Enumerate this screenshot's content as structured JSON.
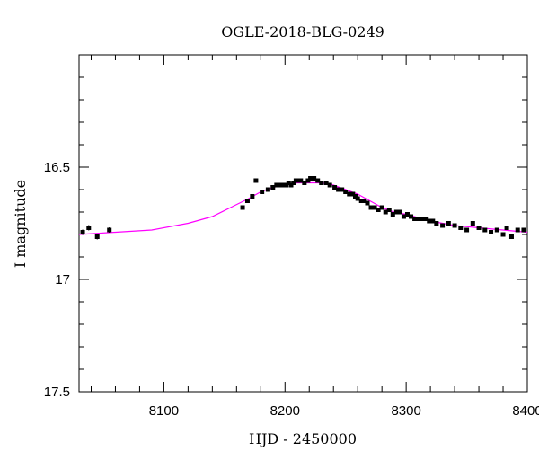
{
  "chart_data": {
    "type": "scatter",
    "title": "OGLE-2018-BLG-0249",
    "xlabel": "HJD - 2450000",
    "ylabel": "I magnitude",
    "xlim": [
      8030,
      8400
    ],
    "ylim": [
      17.5,
      16.0
    ],
    "y_inverted": true,
    "x_ticks": [
      8100,
      8200,
      8300,
      8400
    ],
    "x_tick_labels": [
      "8100",
      "8200",
      "8300",
      "8400"
    ],
    "y_ticks": [
      16.5,
      17.0,
      17.5
    ],
    "y_tick_labels": [
      "16.5",
      "17",
      "17.5"
    ],
    "grid": false,
    "series": [
      {
        "kind": "points",
        "color": "#000000",
        "x": [
          8033,
          8038,
          8045,
          8055,
          8165,
          8169,
          8173,
          8176,
          8181,
          8186,
          8190,
          8193,
          8196,
          8199,
          8201,
          8203,
          8205,
          8207,
          8209,
          8211,
          8213,
          8216,
          8219,
          8221,
          8224,
          8227,
          8230,
          8234,
          8237,
          8241,
          8244,
          8247,
          8250,
          8253,
          8256,
          8258,
          8260,
          8263,
          8265,
          8268,
          8271,
          8274,
          8277,
          8280,
          8283,
          8286,
          8289,
          8292,
          8295,
          8298,
          8301,
          8304,
          8307,
          8310,
          8313,
          8316,
          8319,
          8322,
          8325,
          8330,
          8335,
          8340,
          8345,
          8350,
          8355,
          8360,
          8365,
          8370,
          8375,
          8380,
          8383,
          8387,
          8392,
          8397
        ],
        "y": [
          16.79,
          16.77,
          16.81,
          16.78,
          16.68,
          16.65,
          16.63,
          16.56,
          16.61,
          16.6,
          16.59,
          16.58,
          16.58,
          16.58,
          16.58,
          16.57,
          16.58,
          16.57,
          16.56,
          16.56,
          16.56,
          16.57,
          16.56,
          16.55,
          16.55,
          16.56,
          16.57,
          16.57,
          16.58,
          16.59,
          16.6,
          16.6,
          16.61,
          16.62,
          16.62,
          16.63,
          16.64,
          16.65,
          16.65,
          16.66,
          16.68,
          16.68,
          16.69,
          16.68,
          16.7,
          16.69,
          16.71,
          16.7,
          16.7,
          16.72,
          16.71,
          16.72,
          16.73,
          16.73,
          16.73,
          16.73,
          16.74,
          16.74,
          16.75,
          16.76,
          16.75,
          16.76,
          16.77,
          16.78,
          16.75,
          16.77,
          16.78,
          16.79,
          16.78,
          16.8,
          16.77,
          16.81,
          16.78,
          16.78
        ],
        "errors": [
          0.012,
          0.012,
          0.012,
          0.012,
          0.01,
          0.01,
          0.01,
          0.01,
          0.01,
          0.01,
          0.01,
          0.01,
          0.01,
          0.01,
          0.01,
          0.01,
          0.01,
          0.01,
          0.01,
          0.01,
          0.01,
          0.01,
          0.01,
          0.01,
          0.01,
          0.01,
          0.01,
          0.01,
          0.01,
          0.01,
          0.01,
          0.01,
          0.01,
          0.01,
          0.01,
          0.01,
          0.01,
          0.01,
          0.01,
          0.01,
          0.01,
          0.01,
          0.01,
          0.01,
          0.01,
          0.01,
          0.01,
          0.01,
          0.01,
          0.01,
          0.01,
          0.01,
          0.01,
          0.01,
          0.01,
          0.01,
          0.01,
          0.01,
          0.01,
          0.01,
          0.01,
          0.01,
          0.01,
          0.01,
          0.01,
          0.01,
          0.01,
          0.01,
          0.01,
          0.01,
          0.01,
          0.01,
          0.01,
          0.01
        ]
      },
      {
        "kind": "model-curve",
        "color": "#ff00ff",
        "x": [
          8030,
          8060,
          8090,
          8120,
          8140,
          8155,
          8170,
          8180,
          8190,
          8200,
          8210,
          8220,
          8230,
          8240,
          8250,
          8260,
          8270,
          8280,
          8290,
          8300,
          8320,
          8340,
          8360,
          8380,
          8400
        ],
        "y": [
          16.8,
          16.79,
          16.78,
          16.75,
          16.72,
          16.68,
          16.64,
          16.61,
          16.59,
          16.58,
          16.57,
          16.57,
          16.57,
          16.58,
          16.6,
          16.62,
          16.65,
          16.68,
          16.7,
          16.71,
          16.74,
          16.76,
          16.77,
          16.78,
          16.79
        ]
      }
    ]
  }
}
